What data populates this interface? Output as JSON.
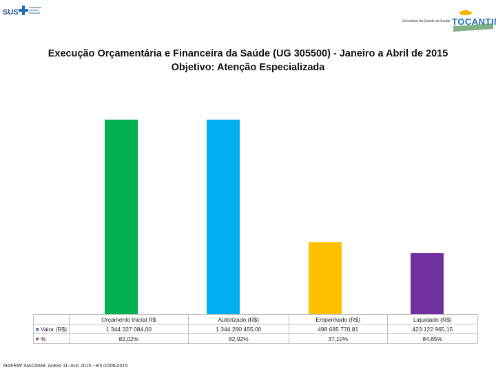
{
  "header": {
    "sus_logo_text": "SUS",
    "secretaria_text": "Secretaria da Estado da Saúde",
    "state_logo_text": "TOCANTINS"
  },
  "title": {
    "line1": "Execução Orçamentária e Financeira da Saúde (UG 305500) - Janeiro a Abril de 2015",
    "line2": "Objetivo: Atenção Especializada"
  },
  "chart_data": {
    "type": "bar",
    "title": "Execução Orçamentária e Financeira da Saúde (UG 305500) - Janeiro a Abril de 2015 — Objetivo: Atenção Especializada",
    "categories": [
      "Orçamento Inicial R$",
      "Autorizado (R$)",
      "Empenhado (R$)",
      "Liquidado (R$)"
    ],
    "series": [
      {
        "name": "Valor (R$)",
        "values": [
          1344327084.0,
          1344280455.0,
          498685770.81,
          423122965.15
        ],
        "labels": [
          "1 344 327 084,00",
          "1 344 280 455,00",
          "498 685 770,81",
          "423 122 965,15"
        ]
      },
      {
        "name": "%",
        "values": [
          82.02,
          82.02,
          37.1,
          84.85
        ],
        "labels": [
          "82,02%",
          "82,02%",
          "37,10%",
          "84,85%"
        ]
      }
    ],
    "bar_colors": [
      "#00b050",
      "#00b0f0",
      "#ffc000",
      "#7030a0"
    ],
    "legend_colors": {
      "Valor (R$)": "#4f81bd",
      "%": "#c0504d"
    },
    "ylim": [
      0,
      1600000000
    ],
    "grid": false,
    "legend": "table"
  },
  "source": "SIAFEM/ SIAC0048. Anexo 11- Ano 2015 - em 02/06/2015"
}
